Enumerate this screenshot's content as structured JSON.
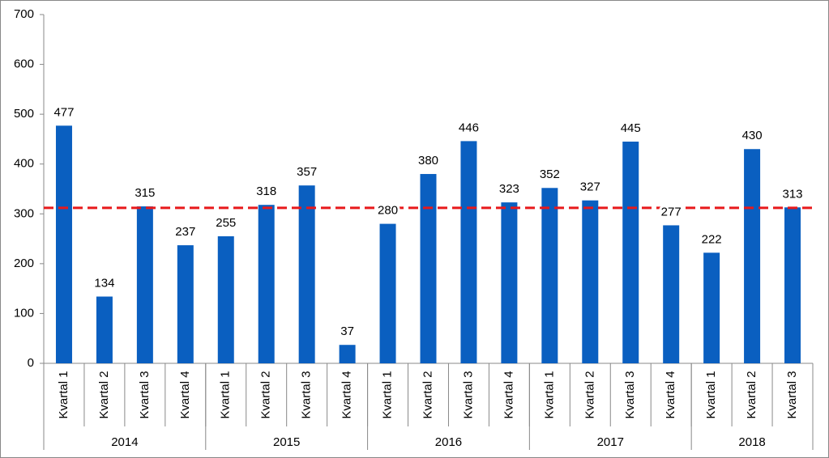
{
  "chart_data": {
    "type": "bar",
    "categories": [
      "Kvartal 1",
      "Kvartal 2",
      "Kvartal 3",
      "Kvartal 4",
      "Kvartal 1",
      "Kvartal 2",
      "Kvartal 3",
      "Kvartal 4",
      "Kvartal 1",
      "Kvartal 2",
      "Kvartal 3",
      "Kvartal 4",
      "Kvartal 1",
      "Kvartal 2",
      "Kvartal 3",
      "Kvartal 4",
      "Kvartal 1",
      "Kvartal 2",
      "Kvartal 3"
    ],
    "category_years": [
      "2014",
      "2014",
      "2014",
      "2014",
      "2015",
      "2015",
      "2015",
      "2015",
      "2016",
      "2016",
      "2016",
      "2016",
      "2017",
      "2017",
      "2017",
      "2017",
      "2018",
      "2018",
      "2018"
    ],
    "values": [
      477,
      134,
      315,
      237,
      255,
      318,
      357,
      37,
      280,
      380,
      446,
      323,
      352,
      327,
      445,
      277,
      222,
      430,
      313
    ],
    "color": "#0a5fc0",
    "reference_line": 312,
    "reference_color": "#e8191b",
    "ylim": [
      0,
      700
    ],
    "yticks": [
      0,
      100,
      200,
      300,
      400,
      500,
      600,
      700
    ]
  }
}
